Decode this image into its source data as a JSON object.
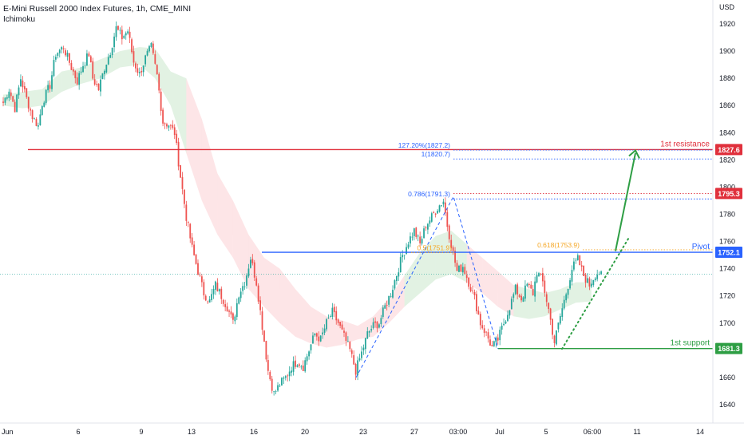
{
  "header": {
    "title": "E-Mini Russell 2000 Index Futures, 1h, CME_MINI",
    "indicator": "Ichimoku",
    "currency": "USD"
  },
  "chart_data": {
    "type": "candlestick",
    "ylim": [
      1632,
      1932
    ],
    "y_ticks": [
      1640,
      1660,
      1680,
      1700,
      1720,
      1740,
      1760,
      1780,
      1800,
      1820,
      1840,
      1860,
      1880,
      1900,
      1920
    ],
    "x_ticks": [
      "Jun",
      "6",
      "9",
      "13",
      "16",
      "20",
      "23",
      "27",
      "03:00",
      "Jul",
      "5",
      "06:00",
      "11",
      "14"
    ],
    "levels": [
      {
        "label": "1st resistance",
        "value": 1827.6,
        "badge": "1827.6",
        "color": "#e0303c"
      },
      {
        "label": "",
        "value": 1795.3,
        "badge": "1795.3",
        "color": "#e0303c"
      },
      {
        "label": "Pivot",
        "value": 1752.1,
        "badge": "1752.1",
        "color": "#2962ff"
      },
      {
        "label": "1st support",
        "value": 1681.3,
        "badge": "1681.3",
        "color": "#2e9e44"
      }
    ],
    "fib_labels": [
      {
        "text": "127.20%(1827.2)",
        "value": 1827.2,
        "color": "#2962ff"
      },
      {
        "text": "1(1820.7)",
        "value": 1820.7,
        "color": "#2962ff"
      },
      {
        "text": "0.786(1791.3)",
        "value": 1791.3,
        "color": "#2962ff"
      },
      {
        "text": "0.618(1753.9)",
        "value": 1753.9,
        "color": "#f5a623"
      },
      {
        "text": "0.5(1751.9)",
        "value": 1751.9,
        "color": "#f5a623"
      }
    ],
    "current_price": 1736,
    "path": [
      [
        0,
        1862
      ],
      [
        3,
        1872
      ],
      [
        6,
        1858
      ],
      [
        9,
        1880
      ],
      [
        12,
        1865
      ],
      [
        15,
        1852
      ],
      [
        18,
        1845
      ],
      [
        20,
        1862
      ],
      [
        24,
        1875
      ],
      [
        27,
        1898
      ],
      [
        31,
        1903
      ],
      [
        35,
        1888
      ],
      [
        38,
        1878
      ],
      [
        41,
        1890
      ],
      [
        44,
        1898
      ],
      [
        46,
        1880
      ],
      [
        49,
        1872
      ],
      [
        52,
        1888
      ],
      [
        55,
        1900
      ],
      [
        58,
        1917
      ],
      [
        61,
        1910
      ],
      [
        64,
        1915
      ],
      [
        67,
        1892
      ],
      [
        70,
        1883
      ],
      [
        73,
        1895
      ],
      [
        76,
        1903
      ],
      [
        79,
        1882
      ],
      [
        82,
        1848
      ],
      [
        85,
        1846
      ],
      [
        88,
        1840
      ],
      [
        91,
        1808
      ],
      [
        94,
        1778
      ],
      [
        97,
        1755
      ],
      [
        100,
        1738
      ],
      [
        103,
        1722
      ],
      [
        106,
        1716
      ],
      [
        109,
        1728
      ],
      [
        112,
        1720
      ],
      [
        115,
        1712
      ],
      [
        118,
        1700
      ],
      [
        121,
        1722
      ],
      [
        124,
        1730
      ],
      [
        127,
        1748
      ],
      [
        130,
        1730
      ],
      [
        133,
        1698
      ],
      [
        136,
        1665
      ],
      [
        139,
        1648
      ],
      [
        142,
        1655
      ],
      [
        145,
        1660
      ],
      [
        148,
        1668
      ],
      [
        151,
        1672
      ],
      [
        154,
        1668
      ],
      [
        157,
        1680
      ],
      [
        160,
        1692
      ],
      [
        163,
        1688
      ],
      [
        166,
        1700
      ],
      [
        169,
        1708
      ],
      [
        172,
        1700
      ],
      [
        175,
        1690
      ],
      [
        178,
        1680
      ],
      [
        181,
        1665
      ],
      [
        184,
        1678
      ],
      [
        187,
        1692
      ],
      [
        190,
        1698
      ],
      [
        193,
        1700
      ],
      [
        196,
        1712
      ],
      [
        199,
        1722
      ],
      [
        202,
        1736
      ],
      [
        205,
        1750
      ],
      [
        208,
        1760
      ],
      [
        211,
        1768
      ],
      [
        214,
        1758
      ],
      [
        217,
        1772
      ],
      [
        220,
        1778
      ],
      [
        223,
        1785
      ],
      [
        226,
        1790
      ],
      [
        228,
        1772
      ],
      [
        230,
        1758
      ],
      [
        233,
        1738
      ],
      [
        236,
        1742
      ],
      [
        239,
        1730
      ],
      [
        242,
        1718
      ],
      [
        245,
        1700
      ],
      [
        248,
        1692
      ],
      [
        251,
        1682
      ],
      [
        254,
        1688
      ],
      [
        257,
        1700
      ],
      [
        260,
        1712
      ],
      [
        263,
        1725
      ],
      [
        266,
        1718
      ],
      [
        269,
        1728
      ],
      [
        272,
        1722
      ],
      [
        274,
        1738
      ],
      [
        277,
        1730
      ],
      [
        280,
        1710
      ],
      [
        283,
        1686
      ],
      [
        286,
        1705
      ],
      [
        289,
        1722
      ],
      [
        292,
        1740
      ],
      [
        295,
        1747
      ],
      [
        298,
        1735
      ],
      [
        301,
        1728
      ],
      [
        304,
        1736
      ],
      [
        307,
        1738
      ]
    ],
    "cloud": [
      [
        0,
        1868,
        1860
      ],
      [
        10,
        1870,
        1858
      ],
      [
        20,
        1872,
        1860
      ],
      [
        30,
        1885,
        1870
      ],
      [
        40,
        1888,
        1876
      ],
      [
        50,
        1894,
        1880
      ],
      [
        60,
        1900,
        1888
      ],
      [
        70,
        1903,
        1890
      ],
      [
        78,
        1902,
        1880
      ],
      [
        86,
        1885,
        1860
      ],
      [
        94,
        1880,
        1825
      ],
      [
        102,
        1850,
        1790
      ],
      [
        110,
        1810,
        1765
      ],
      [
        118,
        1790,
        1748
      ],
      [
        126,
        1765,
        1725
      ],
      [
        134,
        1748,
        1712
      ],
      [
        142,
        1740,
        1700
      ],
      [
        150,
        1725,
        1690
      ],
      [
        158,
        1712,
        1685
      ],
      [
        166,
        1705,
        1682
      ],
      [
        174,
        1702,
        1684
      ],
      [
        182,
        1698,
        1688
      ],
      [
        190,
        1705,
        1690
      ],
      [
        198,
        1718,
        1700
      ],
      [
        206,
        1735,
        1712
      ],
      [
        214,
        1752,
        1722
      ],
      [
        222,
        1764,
        1732
      ],
      [
        230,
        1768,
        1736
      ],
      [
        238,
        1758,
        1730
      ],
      [
        246,
        1748,
        1722
      ],
      [
        254,
        1738,
        1712
      ],
      [
        262,
        1728,
        1705
      ],
      [
        270,
        1725,
        1703
      ],
      [
        278,
        1722,
        1705
      ],
      [
        286,
        1725,
        1710
      ],
      [
        294,
        1730,
        1715
      ],
      [
        302,
        1730,
        1716
      ]
    ]
  }
}
